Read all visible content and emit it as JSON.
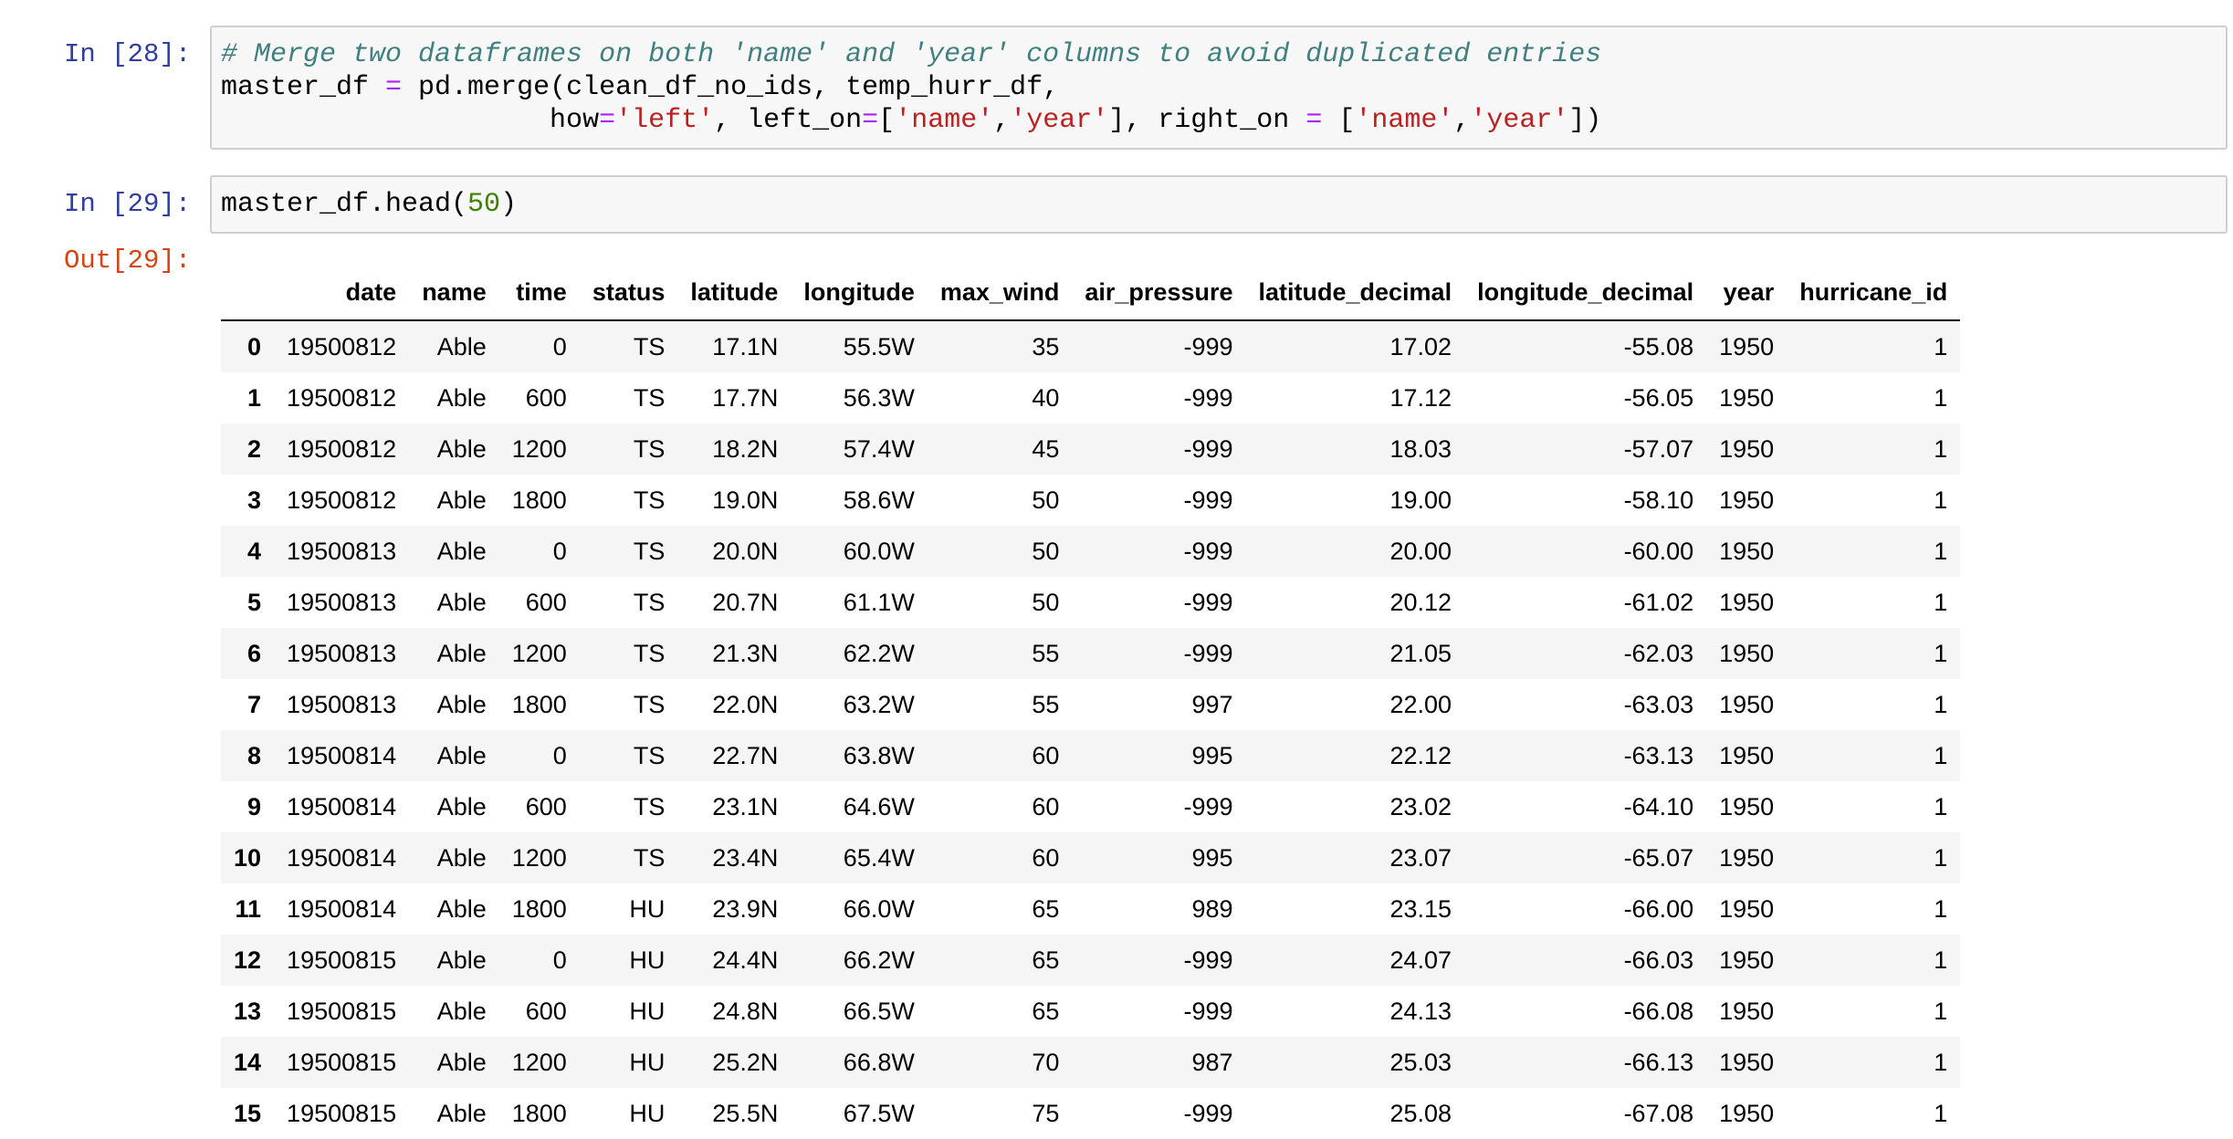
{
  "cells": [
    {
      "prompt": "In [28]:",
      "lines": [
        [
          {
            "t": "comment",
            "v": "# Merge two dataframes on both 'name' and 'year' columns to avoid duplicated entries"
          }
        ],
        [
          {
            "t": "plain",
            "v": "master_df "
          },
          {
            "t": "op",
            "v": "="
          },
          {
            "t": "plain",
            "v": " pd.merge(clean_df_no_ids, temp_hurr_df,"
          }
        ],
        [
          {
            "t": "plain",
            "v": "                    how"
          },
          {
            "t": "op",
            "v": "="
          },
          {
            "t": "str",
            "v": "'left'"
          },
          {
            "t": "plain",
            "v": ", left_on"
          },
          {
            "t": "op",
            "v": "="
          },
          {
            "t": "plain",
            "v": "["
          },
          {
            "t": "str",
            "v": "'name'"
          },
          {
            "t": "plain",
            "v": ","
          },
          {
            "t": "str",
            "v": "'year'"
          },
          {
            "t": "plain",
            "v": "], right_on "
          },
          {
            "t": "op",
            "v": "="
          },
          {
            "t": "plain",
            "v": " ["
          },
          {
            "t": "str",
            "v": "'name'"
          },
          {
            "t": "plain",
            "v": ","
          },
          {
            "t": "str",
            "v": "'year'"
          },
          {
            "t": "plain",
            "v": "])"
          }
        ]
      ]
    },
    {
      "prompt": "In [29]:",
      "lines": [
        [
          {
            "t": "plain",
            "v": "master_df.head("
          },
          {
            "t": "num",
            "v": "50"
          },
          {
            "t": "plain",
            "v": ")"
          }
        ]
      ]
    }
  ],
  "output_prompt": "Out[29]:",
  "table": {
    "columns": [
      "",
      "date",
      "name",
      "time",
      "status",
      "latitude",
      "longitude",
      "max_wind",
      "air_pressure",
      "latitude_decimal",
      "longitude_decimal",
      "year",
      "hurricane_id"
    ],
    "rows": [
      [
        "0",
        "19500812",
        "Able",
        "0",
        "TS",
        "17.1N",
        "55.5W",
        "35",
        "-999",
        "17.02",
        "-55.08",
        "1950",
        "1"
      ],
      [
        "1",
        "19500812",
        "Able",
        "600",
        "TS",
        "17.7N",
        "56.3W",
        "40",
        "-999",
        "17.12",
        "-56.05",
        "1950",
        "1"
      ],
      [
        "2",
        "19500812",
        "Able",
        "1200",
        "TS",
        "18.2N",
        "57.4W",
        "45",
        "-999",
        "18.03",
        "-57.07",
        "1950",
        "1"
      ],
      [
        "3",
        "19500812",
        "Able",
        "1800",
        "TS",
        "19.0N",
        "58.6W",
        "50",
        "-999",
        "19.00",
        "-58.10",
        "1950",
        "1"
      ],
      [
        "4",
        "19500813",
        "Able",
        "0",
        "TS",
        "20.0N",
        "60.0W",
        "50",
        "-999",
        "20.00",
        "-60.00",
        "1950",
        "1"
      ],
      [
        "5",
        "19500813",
        "Able",
        "600",
        "TS",
        "20.7N",
        "61.1W",
        "50",
        "-999",
        "20.12",
        "-61.02",
        "1950",
        "1"
      ],
      [
        "6",
        "19500813",
        "Able",
        "1200",
        "TS",
        "21.3N",
        "62.2W",
        "55",
        "-999",
        "21.05",
        "-62.03",
        "1950",
        "1"
      ],
      [
        "7",
        "19500813",
        "Able",
        "1800",
        "TS",
        "22.0N",
        "63.2W",
        "55",
        "997",
        "22.00",
        "-63.03",
        "1950",
        "1"
      ],
      [
        "8",
        "19500814",
        "Able",
        "0",
        "TS",
        "22.7N",
        "63.8W",
        "60",
        "995",
        "22.12",
        "-63.13",
        "1950",
        "1"
      ],
      [
        "9",
        "19500814",
        "Able",
        "600",
        "TS",
        "23.1N",
        "64.6W",
        "60",
        "-999",
        "23.02",
        "-64.10",
        "1950",
        "1"
      ],
      [
        "10",
        "19500814",
        "Able",
        "1200",
        "TS",
        "23.4N",
        "65.4W",
        "60",
        "995",
        "23.07",
        "-65.07",
        "1950",
        "1"
      ],
      [
        "11",
        "19500814",
        "Able",
        "1800",
        "HU",
        "23.9N",
        "66.0W",
        "65",
        "989",
        "23.15",
        "-66.00",
        "1950",
        "1"
      ],
      [
        "12",
        "19500815",
        "Able",
        "0",
        "HU",
        "24.4N",
        "66.2W",
        "65",
        "-999",
        "24.07",
        "-66.03",
        "1950",
        "1"
      ],
      [
        "13",
        "19500815",
        "Able",
        "600",
        "HU",
        "24.8N",
        "66.5W",
        "65",
        "-999",
        "24.13",
        "-66.08",
        "1950",
        "1"
      ],
      [
        "14",
        "19500815",
        "Able",
        "1200",
        "HU",
        "25.2N",
        "66.8W",
        "70",
        "987",
        "25.03",
        "-66.13",
        "1950",
        "1"
      ],
      [
        "15",
        "19500815",
        "Able",
        "1800",
        "HU",
        "25.5N",
        "67.5W",
        "75",
        "-999",
        "25.08",
        "-67.08",
        "1950",
        "1"
      ]
    ]
  },
  "colors": {
    "prompt_in": "#303f9f",
    "prompt_out": "#d84315",
    "comment": "#408080",
    "operator": "#aa22ff",
    "string": "#ba2121",
    "number": "#408000"
  }
}
